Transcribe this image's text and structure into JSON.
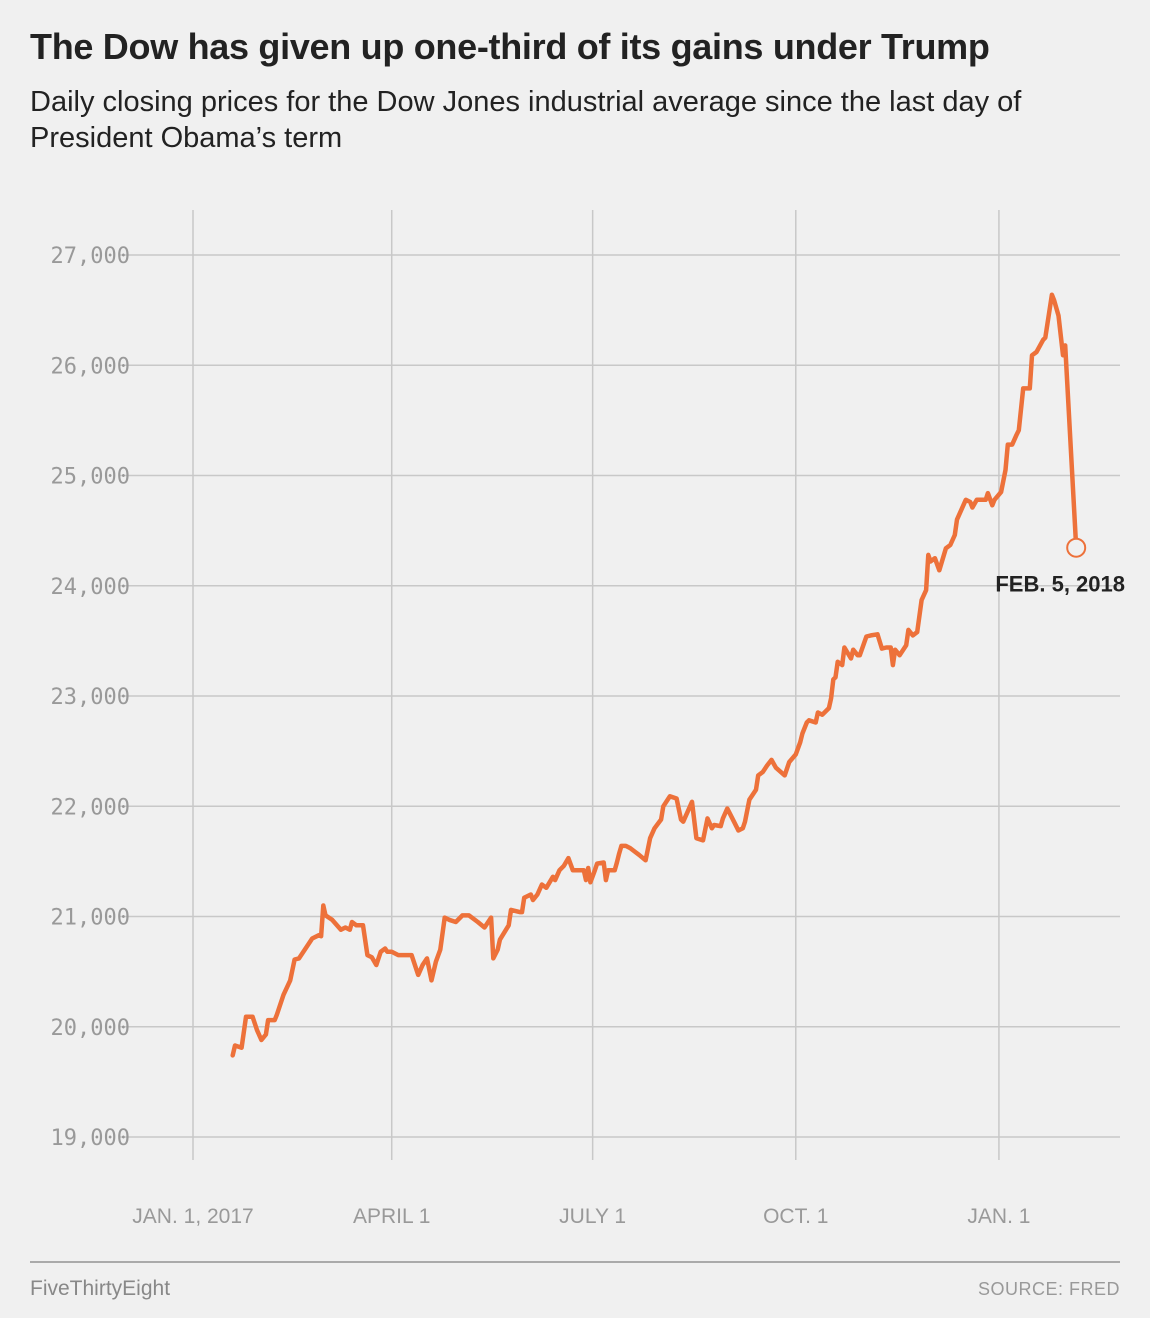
{
  "header": {
    "title": "The Dow has given up one-third of its gains under Trump",
    "subtitle": "Daily closing prices for the Dow Jones industrial average since the last day of President Obama’s term"
  },
  "footer": {
    "brand": "FiveThirtyEight",
    "source": "SOURCE: FRED"
  },
  "chart_data": {
    "type": "line",
    "title": "The Dow has given up one-third of its gains under Trump",
    "xlabel": "",
    "ylabel": "",
    "x_unit": "days since 2017-01-01",
    "xlim": [
      0,
      420
    ],
    "ylim": [
      19000,
      27000
    ],
    "grid": true,
    "line_color": "#ed713a",
    "y_ticks": [
      19000,
      20000,
      21000,
      22000,
      23000,
      24000,
      25000,
      26000,
      27000
    ],
    "y_tick_labels": [
      "19,000",
      "20,000",
      "21,000",
      "22,000",
      "23,000",
      "24,000",
      "25,000",
      "26,000",
      "27,000"
    ],
    "x_ticks": [
      0,
      90,
      181,
      273,
      365
    ],
    "x_tick_labels": [
      "JAN. 1, 2017",
      "APRIL 1",
      "JULY 1",
      "OCT. 1",
      "JAN. 1"
    ],
    "annotation": {
      "label": "FEB. 5, 2018",
      "x": 400,
      "y": 24345
    },
    "series": [
      {
        "name": "Dow Jones industrial average",
        "x": [
          18,
          19,
          22,
          24,
          27,
          29,
          31,
          33,
          34,
          37,
          38,
          41,
          44,
          46,
          48,
          50,
          54,
          57,
          58,
          59,
          60,
          63,
          67,
          69,
          71,
          72,
          74,
          77,
          79,
          81,
          83,
          85,
          87,
          88,
          90,
          93,
          96,
          99,
          102,
          104,
          106,
          108,
          110,
          112,
          114,
          116,
          119,
          121,
          122,
          125,
          129,
          132,
          135,
          136,
          138,
          139,
          143,
          144,
          148,
          149,
          150,
          153,
          154,
          156,
          158,
          160,
          163,
          164,
          166,
          168,
          170,
          172,
          174,
          177,
          178,
          179,
          180,
          182,
          183,
          186,
          187,
          188,
          191,
          192,
          193,
          194,
          196,
          198,
          200,
          202,
          205,
          207,
          209,
          212,
          213,
          215,
          216,
          219,
          221,
          222,
          224,
          226,
          228,
          231,
          233,
          235,
          236,
          239,
          240,
          242,
          245,
          247,
          249,
          250,
          252,
          255,
          256,
          258,
          260,
          262,
          264,
          268,
          270,
          273,
          275,
          276,
          278,
          279,
          282,
          283,
          285,
          288,
          289,
          290,
          291,
          292,
          294,
          295,
          298,
          299,
          301,
          302,
          305,
          307,
          310,
          312,
          314,
          316,
          317,
          318,
          320,
          323,
          324,
          326,
          328,
          330,
          332,
          333,
          334,
          336,
          338,
          341,
          343,
          345,
          346,
          348,
          350,
          352,
          353,
          355,
          359,
          360,
          362,
          363,
          366,
          368,
          369,
          371,
          373,
          374,
          376,
          379,
          380,
          382,
          385,
          386,
          389,
          390,
          392,
          394,
          395,
          400
        ],
        "values": [
          19740,
          19830,
          19810,
          20090,
          20090,
          19970,
          19880,
          19930,
          20060,
          20060,
          20110,
          20290,
          20420,
          20610,
          20620,
          20680,
          20800,
          20830,
          20820,
          21100,
          21010,
          20970,
          20880,
          20900,
          20880,
          20950,
          20920,
          20920,
          20650,
          20630,
          20560,
          20680,
          20710,
          20680,
          20680,
          20650,
          20650,
          20650,
          20470,
          20560,
          20620,
          20420,
          20590,
          20700,
          20990,
          20970,
          20950,
          20990,
          21010,
          21010,
          20950,
          20900,
          20990,
          20620,
          20700,
          20790,
          20920,
          21060,
          21040,
          21040,
          21170,
          21200,
          21150,
          21200,
          21290,
          21260,
          21360,
          21330,
          21420,
          21460,
          21530,
          21420,
          21420,
          21420,
          21330,
          21440,
          21310,
          21420,
          21480,
          21490,
          21330,
          21420,
          21420,
          21490,
          21570,
          21640,
          21640,
          21620,
          21590,
          21560,
          21510,
          21710,
          21800,
          21880,
          22000,
          22060,
          22090,
          22070,
          21880,
          21860,
          21950,
          22040,
          21710,
          21690,
          21890,
          21800,
          21830,
          21820,
          21890,
          21980,
          21860,
          21780,
          21800,
          21860,
          22060,
          22150,
          22280,
          22310,
          22370,
          22420,
          22350,
          22280,
          22400,
          22470,
          22580,
          22660,
          22760,
          22780,
          22760,
          22850,
          22830,
          22890,
          22980,
          23150,
          23170,
          23310,
          23280,
          23440,
          23340,
          23420,
          23370,
          23370,
          23540,
          23550,
          23560,
          23430,
          23440,
          23440,
          23280,
          23420,
          23370,
          23460,
          23600,
          23550,
          23580,
          23870,
          23960,
          24280,
          24220,
          24250,
          24140,
          24340,
          24370,
          24460,
          24600,
          24690,
          24780,
          24760,
          24710,
          24780,
          24780,
          24840,
          24730,
          24780,
          24850,
          25050,
          25280,
          25280,
          25370,
          25410,
          25790,
          25790,
          26090,
          26120,
          26230,
          26250,
          26640,
          26590,
          26450,
          26090,
          26180,
          24345
        ]
      }
    ]
  }
}
